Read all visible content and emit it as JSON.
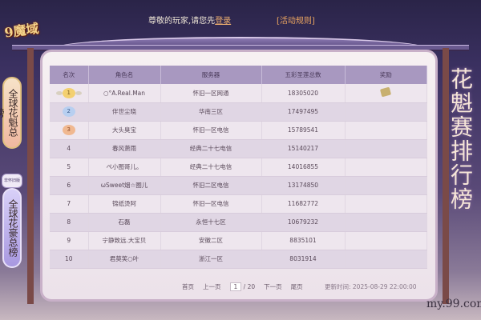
{
  "header": {
    "greeting": "尊敬的玩家,请您先",
    "login": "登录",
    "rules": "[活动规则]",
    "logo": "9魔域"
  },
  "sidebar": {
    "tabs": [
      {
        "label": "全球花魁总榜"
      },
      {
        "label": "全球花豪总榜",
        "badge": "非怀旧版"
      }
    ]
  },
  "title": "花魁赛排行榜",
  "table": {
    "headers": [
      "名次",
      "角色名",
      "服务器",
      "五彩圣莲总数",
      "奖励"
    ],
    "rows": [
      {
        "rank": "1",
        "name": "○°A.Real.Man",
        "server": "怀旧一区网通",
        "total": "18305020",
        "reward": "gift-icon"
      },
      {
        "rank": "2",
        "name": "伴世尘晓",
        "server": "华南三区",
        "total": "17497495"
      },
      {
        "rank": "3",
        "name": "大头臭宝",
        "server": "怀旧一区电信",
        "total": "15789541"
      },
      {
        "rank": "4",
        "name": "春风萧雨",
        "server": "经典二十七电信",
        "total": "15140217"
      },
      {
        "rank": "5",
        "name": "ぺ小图哥儿。",
        "server": "经典二十七电信",
        "total": "14016855"
      },
      {
        "rank": "6",
        "name": "ωSweet烟☆圈儿",
        "server": "怀旧二区电信",
        "total": "13174850"
      },
      {
        "rank": "7",
        "name": "锦纸烫阿",
        "server": "怀旧一区电信",
        "total": "11682772"
      },
      {
        "rank": "8",
        "name": "石磊",
        "server": "永恒十七区",
        "total": "10679232"
      },
      {
        "rank": "9",
        "name": "宁静致远.大宝贝",
        "server": "安徽二区",
        "total": "8835101"
      },
      {
        "rank": "10",
        "name": "君莫笑○叶",
        "server": "浙江一区",
        "total": "8031914"
      }
    ]
  },
  "pager": {
    "first": "首页",
    "prev": "上一页",
    "current": "1",
    "total": "/ 20",
    "next": "下一页",
    "last": "尾页"
  },
  "update": "更新时间: 2025-08-29 22:00:00",
  "site": "my.99.com"
}
